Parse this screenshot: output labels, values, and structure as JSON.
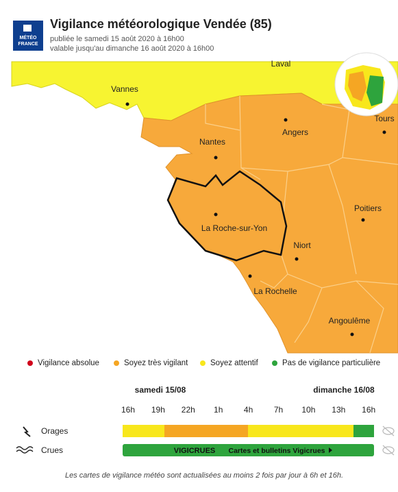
{
  "header": {
    "logo": [
      "MÉTÉO",
      "FRANCE"
    ],
    "title": "Vigilance météorologique Vendée (85)",
    "published": "publiée le samedi 15 août 2020 à 16h00",
    "valid": "valable jusqu'au dimanche 16 août 2020 à 16h00"
  },
  "map": {
    "cities": [
      "Laval",
      "Vannes",
      "Angers",
      "Tours",
      "Nantes",
      "La Roche-sur-Yon",
      "Poitiers",
      "Niort",
      "La Rochelle",
      "Angoulême"
    ]
  },
  "legend": [
    {
      "label": "Vigilance absolue",
      "color": "#d0021b"
    },
    {
      "label": "Soyez très vigilant",
      "color": "#f5a623"
    },
    {
      "label": "Soyez attentif",
      "color": "#f8e71c"
    },
    {
      "label": "Pas de vigilance particulière",
      "color": "#2ea43d"
    }
  ],
  "timeline": {
    "days": [
      "samedi 15/08",
      "dimanche 16/08"
    ],
    "hours": [
      "16h",
      "19h",
      "22h",
      "1h",
      "4h",
      "7h",
      "10h",
      "13h",
      "16h"
    ],
    "rows": [
      {
        "label": "Orages"
      },
      {
        "label": "Crues",
        "badge": "VIGICRUES",
        "link": "Cartes et bulletins Vigicrues"
      }
    ]
  },
  "footer": "Les cartes de vigilance météo sont actualisées au moins 2 fois par jour à 6h et 16h."
}
